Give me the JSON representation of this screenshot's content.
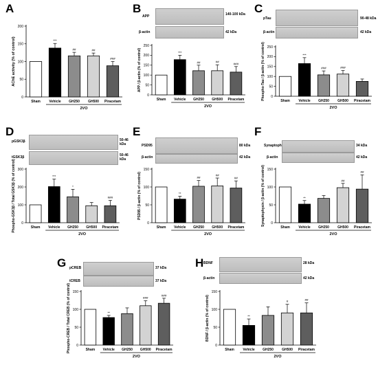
{
  "panels": {
    "A": {
      "letter": "A"
    },
    "B": {
      "letter": "B",
      "blot_top_name": "APP",
      "blot_top_size": "140-100 kDa",
      "blot_bottom_name": "β-actin",
      "blot_bottom_size": "42 kDa"
    },
    "C": {
      "letter": "C",
      "blot_top_name": "pTau",
      "blot_top_size": "90-48 kDa",
      "blot_bottom_name": "β-actin",
      "blot_bottom_size": "42 kDa"
    },
    "D": {
      "letter": "D",
      "blot_top_name": "pGSK3β",
      "blot_top_size": "50-46 kDa",
      "blot_bottom_name": "tGSK3β",
      "blot_bottom_size": "50-46 kDa"
    },
    "E": {
      "letter": "E",
      "blot_top_name": "PSD95",
      "blot_top_size": "80 kDa",
      "blot_bottom_name": "β-actin",
      "blot_bottom_size": "42 kDa"
    },
    "F": {
      "letter": "F",
      "blot_top_name": "Synaptophysin",
      "blot_top_size": "34 kDa",
      "blot_bottom_name": "β-actin",
      "blot_bottom_size": "42 kDa"
    },
    "G": {
      "letter": "G",
      "blot_top_name": "pCREB",
      "blot_top_size": "37 kDa",
      "blot_bottom_name": "tCREB",
      "blot_bottom_size": "37 kDa"
    },
    "H": {
      "letter": "H",
      "blot_top_name": "BDNF",
      "blot_top_size": "28 kDa",
      "blot_bottom_name": "β-actin",
      "blot_bottom_size": "42 kDa"
    }
  },
  "colors": {
    "sham": "#ffffff",
    "vehicle": "#000000",
    "gh250": "#8c8c8c",
    "gh500": "#d3d3d3",
    "piracetam": "#5e5e5e"
  },
  "chart_data": [
    {
      "id": "A",
      "type": "bar",
      "categories": [
        "Sham",
        "Vehicle",
        "GH250",
        "GH500",
        "Piracetam"
      ],
      "group_label": "2VO",
      "ylabel": "AChE activity (% of control)",
      "ylim": [
        0,
        200
      ],
      "yticks": [
        0,
        50,
        100,
        150,
        200
      ],
      "values": [
        100,
        138,
        116,
        116,
        88
      ],
      "errors": [
        0,
        13,
        10,
        8,
        12
      ],
      "sig": [
        "",
        "***",
        "##",
        "##",
        "###"
      ]
    },
    {
      "id": "B",
      "type": "bar",
      "categories": [
        "Sham",
        "Vehicle",
        "GH250",
        "GH500",
        "Piracetam"
      ],
      "group_label": "2VO",
      "ylabel": "APP / β-actin (% of control)",
      "ylim": [
        0,
        250
      ],
      "yticks": [
        0,
        50,
        100,
        150,
        200,
        250
      ],
      "values": [
        100,
        178,
        122,
        122,
        115
      ],
      "errors": [
        0,
        22,
        28,
        30,
        28
      ],
      "sig": [
        "",
        "***",
        "##",
        "##",
        "###"
      ]
    },
    {
      "id": "C",
      "type": "bar",
      "categories": [
        "Sham",
        "Vehicle",
        "GH250",
        "GH500",
        "Piracetam"
      ],
      "group_label": "2VO",
      "ylabel": "Phospho-Tau / β-actin (% of control)",
      "ylim": [
        0,
        250
      ],
      "yticks": [
        0,
        50,
        100,
        150,
        200,
        250
      ],
      "values": [
        100,
        165,
        108,
        112,
        75
      ],
      "errors": [
        0,
        30,
        20,
        18,
        12
      ],
      "sig": [
        "",
        "***",
        "###",
        "###",
        ""
      ]
    },
    {
      "id": "D",
      "type": "bar",
      "categories": [
        "Sham",
        "Vehicle",
        "GH250",
        "GH500",
        "Piracetam"
      ],
      "group_label": "2VO",
      "ylabel": "Phospho-GSK3β / Total GSK3β (% of control)",
      "ylim": [
        0,
        300
      ],
      "yticks": [
        0,
        100,
        200,
        300
      ],
      "values": [
        100,
        202,
        145,
        95,
        95
      ],
      "errors": [
        0,
        42,
        42,
        18,
        30
      ],
      "sig": [
        "",
        "***",
        "*",
        "",
        "###"
      ]
    },
    {
      "id": "E",
      "type": "bar",
      "categories": [
        "Sham",
        "Vehicle",
        "GH250",
        "GH500",
        "Piracetam"
      ],
      "group_label": "2VO",
      "ylabel": "PSD95 / β-actin (% of control)",
      "ylim": [
        0,
        150
      ],
      "yticks": [
        0,
        50,
        100,
        150
      ],
      "values": [
        100,
        66,
        102,
        103,
        97
      ],
      "errors": [
        0,
        8,
        16,
        22,
        20
      ],
      "sig": [
        "",
        "**",
        "##",
        "##",
        "##"
      ]
    },
    {
      "id": "F",
      "type": "bar",
      "categories": [
        "Sham",
        "Vehicle",
        "GH250",
        "GH500",
        "Piracetam"
      ],
      "group_label": "2VO",
      "ylabel": "Synaptophysin / β-actin (% of control)",
      "ylim": [
        0,
        150
      ],
      "yticks": [
        0,
        50,
        100,
        150
      ],
      "values": [
        100,
        52,
        68,
        98,
        94
      ],
      "errors": [
        0,
        10,
        8,
        12,
        40
      ],
      "sig": [
        "",
        "**",
        "",
        "##",
        "##"
      ]
    },
    {
      "id": "G",
      "type": "bar",
      "categories": [
        "Sham",
        "Vehicle",
        "GH250",
        "GH500",
        "Piracetam"
      ],
      "group_label": "2VO",
      "ylabel": "Phospho-CREB / Total CREB (% of control)",
      "ylim": [
        0,
        150
      ],
      "yticks": [
        0,
        50,
        100,
        150
      ],
      "values": [
        100,
        77,
        88,
        110,
        117
      ],
      "errors": [
        0,
        6,
        16,
        14,
        14
      ],
      "sig": [
        "",
        "**",
        "",
        "###",
        "###"
      ]
    },
    {
      "id": "H",
      "type": "bar",
      "categories": [
        "Sham",
        "Vehicle",
        "GH250",
        "GH500",
        "Piracetam"
      ],
      "group_label": "2VO",
      "ylabel": "BDNF / β-actin (% of control)",
      "ylim": [
        0,
        150
      ],
      "yticks": [
        0,
        50,
        100,
        150
      ],
      "values": [
        100,
        55,
        83,
        90,
        90
      ],
      "errors": [
        0,
        18,
        24,
        24,
        28
      ],
      "sig": [
        "",
        "**",
        "",
        "#",
        "##"
      ]
    }
  ]
}
